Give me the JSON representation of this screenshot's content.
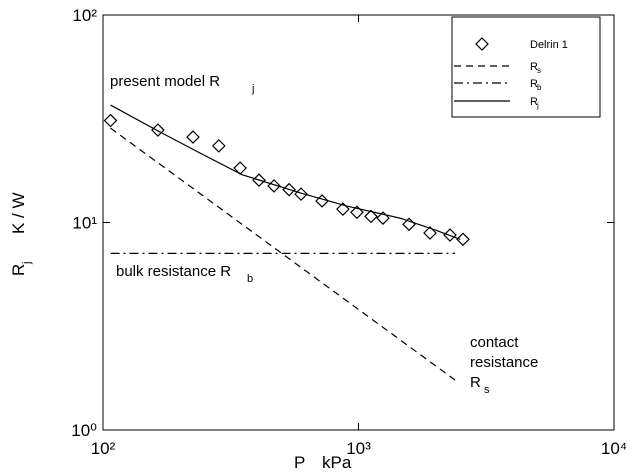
{
  "chart_data": {
    "type": "line",
    "xscale": "log",
    "yscale": "log",
    "xlim": [
      100,
      10000
    ],
    "ylim": [
      1,
      100
    ],
    "xticks": [
      {
        "value": 100,
        "label": "10²"
      },
      {
        "value": 1000,
        "label": "10³"
      },
      {
        "value": 10000,
        "label": "10⁴"
      }
    ],
    "yticks": [
      {
        "value": 1,
        "label": "10⁰"
      },
      {
        "value": 10,
        "label": "10¹"
      },
      {
        "value": 100,
        "label": "10²"
      }
    ],
    "xlabel": {
      "text": "P",
      "unit": "kPa"
    },
    "ylabel": {
      "text": "R",
      "subscript": "j",
      "unit": "K / W"
    },
    "legend": "upper right",
    "series": [
      {
        "name": "Delrin 1",
        "style": "markers",
        "color": "#000000",
        "x": [
          107,
          164,
          225,
          284,
          344,
          408,
          467,
          535,
          596,
          720,
          869,
          986,
          1119,
          1247,
          1577,
          1905,
          2281,
          2564
        ],
        "values": [
          31,
          27.9,
          25.8,
          23.4,
          18.3,
          16.0,
          15.0,
          14.4,
          13.7,
          12.7,
          11.6,
          11.2,
          10.7,
          10.5,
          9.8,
          8.9,
          8.7,
          8.3
        ]
      },
      {
        "name": "R",
        "subscript": "s",
        "style": "dashed",
        "color": "#000000",
        "x": [
          107,
          2388
        ],
        "values": [
          28.5,
          1.74
        ]
      },
      {
        "name": "R",
        "subscript": "b",
        "style": "dashdot",
        "color": "#000000",
        "x": [
          107,
          2388
        ],
        "values": [
          7.1,
          7.1
        ]
      },
      {
        "name": "R",
        "subscript": "j",
        "style": "solid",
        "color": "#000000",
        "x": [
          107,
          170,
          240,
          350,
          590,
          900,
          1453,
          2000,
          2500
        ],
        "values": [
          36.8,
          27,
          21.6,
          17,
          13.9,
          12,
          10.5,
          9.2,
          8.3
        ]
      }
    ],
    "annotations": [
      {
        "lines": [
          "present model R"
        ],
        "subscript": "j"
      },
      {
        "lines": [
          "bulk resistance R"
        ],
        "subscript": "b"
      },
      {
        "lines": [
          "contact",
          "resistance",
          "R"
        ],
        "subscript": "s"
      }
    ]
  }
}
